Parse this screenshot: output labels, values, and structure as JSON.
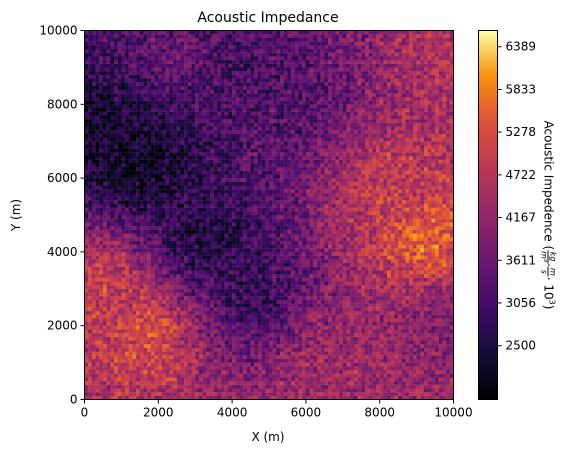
{
  "chart_data": {
    "type": "heatmap",
    "title": "Acoustic Impedance",
    "xlabel": "X (m)",
    "ylabel": "Y (m)",
    "xlim": [
      0,
      10000
    ],
    "ylim": [
      0,
      10000
    ],
    "x_ticks": [
      "0",
      "2000",
      "4000",
      "6000",
      "8000",
      "10000"
    ],
    "y_ticks": [
      "0",
      "2000",
      "4000",
      "6000",
      "8000",
      "10000"
    ],
    "colormap": "inferno",
    "colorbar": {
      "label_prefix": "Acoustic Impedence (",
      "label_num1": "kg",
      "label_den1": "m³",
      "label_dot": "·",
      "label_num2": "m",
      "label_den2": "s",
      "label_pow": "· 10",
      "label_exp": "3",
      "label_suffix": ")",
      "range": [
        1800,
        6600
      ],
      "ticks": [
        "2500",
        "3056",
        "3611",
        "4167",
        "4722",
        "5278",
        "5833",
        "6389"
      ]
    },
    "grid": false,
    "field_description": [
      {
        "x": 1500,
        "y": 6300,
        "value": 2050
      },
      {
        "x": 500,
        "y": 7000,
        "value": 2200
      },
      {
        "x": 3200,
        "y": 4300,
        "value": 2400
      },
      {
        "x": 4500,
        "y": 2800,
        "value": 2700
      },
      {
        "x": 5800,
        "y": 7800,
        "value": 3200
      },
      {
        "x": 4000,
        "y": 9200,
        "value": 3000
      },
      {
        "x": 1800,
        "y": 1800,
        "value": 5300
      },
      {
        "x": 400,
        "y": 3200,
        "value": 5100
      },
      {
        "x": 9300,
        "y": 4200,
        "value": 5600
      },
      {
        "x": 8200,
        "y": 5800,
        "value": 4900
      },
      {
        "x": 7300,
        "y": 1200,
        "value": 4300
      },
      {
        "x": 9800,
        "y": 9300,
        "value": 4600
      },
      {
        "x": 9700,
        "y": 2200,
        "value": 3900
      },
      {
        "x": 6200,
        "y": 300,
        "value": 4400
      },
      {
        "x": 2600,
        "y": 9700,
        "value": 3500
      }
    ]
  }
}
